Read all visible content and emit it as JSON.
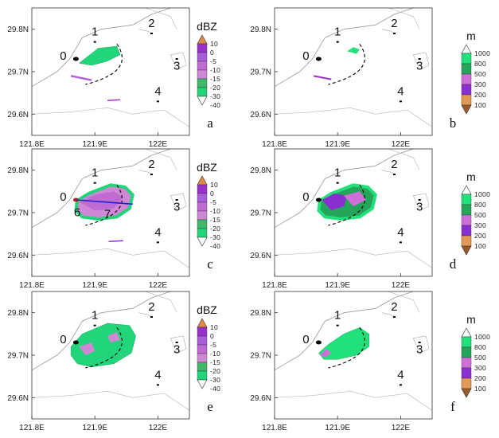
{
  "figure": {
    "panel_labels": [
      "a",
      "b",
      "c",
      "d",
      "e",
      "f"
    ],
    "site_labels": [
      "0",
      "1",
      "2",
      "3",
      "4",
      "6",
      "7"
    ],
    "lat_ticks": [
      "29.8N",
      "29.7N",
      "29.6N"
    ],
    "lon_ticks": [
      "121.8E",
      "121.9E",
      "122E"
    ]
  },
  "colorbar_dbz": {
    "title": "dBZ",
    "labels": [
      "10",
      "0",
      "-5",
      "-10",
      "-15",
      "-20",
      "-30",
      "-40"
    ],
    "colors": [
      "#e08a47",
      "#9a30cc",
      "#a85ed9",
      "#c06ad4",
      "#cf87d6",
      "#3fb86a",
      "#22d47a",
      "#ffffff"
    ]
  },
  "colorbar_m": {
    "title": "m",
    "labels": [
      "1000",
      "800",
      "500",
      "300",
      "200",
      "100"
    ],
    "colors": [
      "#ffffff",
      "#22e07a",
      "#24a55a",
      "#d06fd8",
      "#8a2fcf",
      "#e39a56",
      "#9a5a2a"
    ]
  },
  "chart_data": {
    "type": "map",
    "grid": "6 panels (3 rows x 2 columns)",
    "lat_range": [
      "29.55N",
      "29.85N"
    ],
    "lon_range": [
      "121.8E",
      "122.05E"
    ],
    "lat_ticks": [
      29.8,
      29.7,
      29.6
    ],
    "lon_ticks": [
      121.8,
      121.9,
      122.0
    ],
    "sites": [
      {
        "label": "0",
        "lon": 121.87,
        "lat": 29.73
      },
      {
        "label": "1",
        "lon": 121.9,
        "lat": 29.77
      },
      {
        "label": "2",
        "lon": 121.99,
        "lat": 29.79
      },
      {
        "label": "3",
        "lon": 122.03,
        "lat": 29.73
      },
      {
        "label": "4",
        "lon": 122.0,
        "lat": 29.63
      }
    ],
    "panels": [
      {
        "label": "a",
        "variable": "dBZ"
      },
      {
        "label": "b",
        "variable": "m"
      },
      {
        "label": "c",
        "variable": "dBZ",
        "section_points": [
          "6",
          "7"
        ]
      },
      {
        "label": "d",
        "variable": "m"
      },
      {
        "label": "e",
        "variable": "dBZ"
      },
      {
        "label": "f",
        "variable": "m"
      }
    ]
  }
}
